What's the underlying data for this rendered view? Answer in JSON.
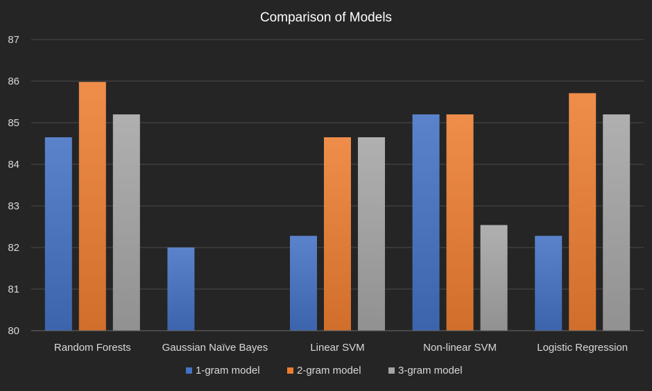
{
  "chart_data": {
    "type": "bar",
    "title": "Comparison of Models",
    "xlabel": "",
    "ylabel": "",
    "ylim": [
      80,
      87
    ],
    "yticks": [
      80,
      81,
      82,
      83,
      84,
      85,
      86,
      87
    ],
    "grid": true,
    "legend_position": "bottom",
    "categories": [
      "Random Forests",
      "Gaussian Naïve Bayes",
      "Linear SVM",
      "Non-linear SVM",
      "Logistic Regression"
    ],
    "series": [
      {
        "name": "1-gram model",
        "color": "#4472c4",
        "values": [
          84.65,
          82.0,
          82.28,
          85.2,
          82.28
        ]
      },
      {
        "name": "2-gram model",
        "color": "#ed7d31",
        "values": [
          85.98,
          80.0,
          84.65,
          85.2,
          85.71
        ]
      },
      {
        "name": "3-gram model",
        "color": "#a5a5a5",
        "values": [
          85.2,
          80.0,
          84.65,
          82.54,
          85.2
        ]
      }
    ]
  }
}
